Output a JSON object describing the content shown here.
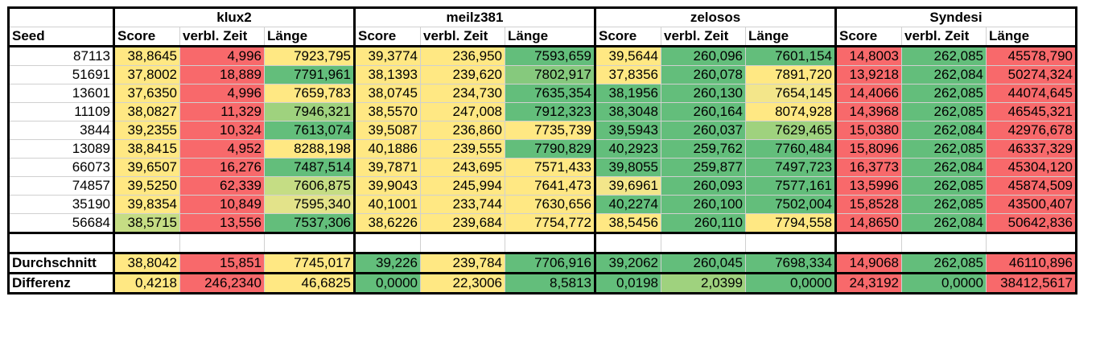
{
  "seed_label": "Seed",
  "sub_headers": [
    "Score",
    "verbl. Zeit",
    "Länge"
  ],
  "groups": [
    {
      "name": "klux2"
    },
    {
      "name": "meilz381"
    },
    {
      "name": "zelosos"
    },
    {
      "name": "Syndesi"
    }
  ],
  "rows": [
    {
      "seed": "87113",
      "v": [
        "38,8645",
        "4,996",
        "7923,795",
        "39,3774",
        "236,950",
        "7593,659",
        "39,5644",
        "260,096",
        "7601,154",
        "14,8003",
        "262,085",
        "45578,790"
      ],
      "c": [
        "#ffe883",
        "#f8696b",
        "#ffe883",
        "#ffe883",
        "#ffe883",
        "#63be7b",
        "#ffe883",
        "#63be7b",
        "#63be7b",
        "#f8696b",
        "#63be7b",
        "#f8696b"
      ]
    },
    {
      "seed": "51691",
      "v": [
        "37,8002",
        "18,889",
        "7791,961",
        "38,1393",
        "239,620",
        "7802,917",
        "37,8356",
        "260,078",
        "7891,720",
        "13,9218",
        "262,084",
        "50274,324"
      ],
      "c": [
        "#ffe883",
        "#f8696b",
        "#63be7b",
        "#ffe883",
        "#ffe883",
        "#86c97d",
        "#ffe883",
        "#63be7b",
        "#ffe883",
        "#f8696b",
        "#63be7b",
        "#f8696b"
      ]
    },
    {
      "seed": "13601",
      "v": [
        "37,6350",
        "4,996",
        "7659,783",
        "38,0745",
        "234,730",
        "7635,354",
        "38,1956",
        "260,130",
        "7654,145",
        "14,4066",
        "262,085",
        "44074,645"
      ],
      "c": [
        "#ffe883",
        "#f8696b",
        "#ffe883",
        "#ffe883",
        "#ffe883",
        "#63be7b",
        "#63be7b",
        "#63be7b",
        "#f3e68a",
        "#f8696b",
        "#63be7b",
        "#f8696b"
      ]
    },
    {
      "seed": "11109",
      "v": [
        "38,0827",
        "11,329",
        "7946,321",
        "38,5570",
        "247,008",
        "7912,323",
        "38,3048",
        "260,164",
        "8074,928",
        "14,3968",
        "262,085",
        "46545,321"
      ],
      "c": [
        "#ffe883",
        "#f8696b",
        "#9fd27e",
        "#ffe883",
        "#ffe883",
        "#63be7b",
        "#63be7b",
        "#63be7b",
        "#ffe883",
        "#f8696b",
        "#63be7b",
        "#f8696b"
      ]
    },
    {
      "seed": "3844",
      "v": [
        "39,2355",
        "10,324",
        "7613,074",
        "39,5087",
        "236,860",
        "7735,739",
        "39,5943",
        "260,037",
        "7629,465",
        "15,0380",
        "262,084",
        "42976,678"
      ],
      "c": [
        "#ffe883",
        "#f8696b",
        "#63be7b",
        "#ffe883",
        "#ffe883",
        "#ffe883",
        "#63be7b",
        "#63be7b",
        "#9fd27e",
        "#f8696b",
        "#63be7b",
        "#f8696b"
      ]
    },
    {
      "seed": "13089",
      "v": [
        "38,8415",
        "4,952",
        "8288,198",
        "40,1886",
        "239,555",
        "7790,829",
        "40,2923",
        "259,762",
        "7760,484",
        "15,8096",
        "262,085",
        "46337,329"
      ],
      "c": [
        "#ffe883",
        "#f8696b",
        "#ffe883",
        "#ffe883",
        "#ffe883",
        "#63be7b",
        "#63be7b",
        "#63be7b",
        "#63be7b",
        "#f8696b",
        "#63be7b",
        "#f8696b"
      ]
    },
    {
      "seed": "66073",
      "v": [
        "39,6507",
        "16,276",
        "7487,514",
        "39,7871",
        "243,695",
        "7571,433",
        "39,8055",
        "259,877",
        "7497,723",
        "16,3773",
        "262,084",
        "45304,120"
      ],
      "c": [
        "#ffe883",
        "#f8696b",
        "#63be7b",
        "#ffe883",
        "#ffe883",
        "#ffe883",
        "#63be7b",
        "#63be7b",
        "#63be7b",
        "#f8696b",
        "#63be7b",
        "#f8696b"
      ]
    },
    {
      "seed": "74857",
      "v": [
        "39,5250",
        "62,339",
        "7606,875",
        "39,9043",
        "245,994",
        "7641,473",
        "39,6961",
        "260,093",
        "7577,161",
        "13,5996",
        "262,085",
        "45874,509"
      ],
      "c": [
        "#ffe883",
        "#f8696b",
        "#c5dd84",
        "#ffe883",
        "#ffe883",
        "#ffe883",
        "#f3e68a",
        "#63be7b",
        "#63be7b",
        "#f8696b",
        "#63be7b",
        "#f8696b"
      ]
    },
    {
      "seed": "35190",
      "v": [
        "39,8354",
        "10,849",
        "7595,340",
        "40,1001",
        "233,744",
        "7630,656",
        "40,2274",
        "260,100",
        "7502,004",
        "15,8528",
        "262,085",
        "43500,407"
      ],
      "c": [
        "#ffe883",
        "#f8696b",
        "#e3e38a",
        "#ffe883",
        "#ffe883",
        "#ffe883",
        "#63be7b",
        "#63be7b",
        "#63be7b",
        "#f8696b",
        "#63be7b",
        "#f8696b"
      ]
    },
    {
      "seed": "56684",
      "v": [
        "38,5715",
        "13,556",
        "7537,306",
        "38,6226",
        "239,684",
        "7754,772",
        "38,5456",
        "260,110",
        "7794,558",
        "14,8650",
        "262,084",
        "50642,836"
      ],
      "c": [
        "#c5dd84",
        "#f8696b",
        "#63be7b",
        "#ffe883",
        "#ffe883",
        "#ffe883",
        "#ffe883",
        "#63be7b",
        "#ffe883",
        "#f8696b",
        "#63be7b",
        "#f8696b"
      ]
    }
  ],
  "summary": [
    {
      "label": "Durchschnitt",
      "v": [
        "38,8042",
        "15,851",
        "7745,017",
        "39,226",
        "239,784",
        "7706,916",
        "39,2062",
        "260,045",
        "7698,334",
        "14,9068",
        "262,085",
        "46110,896"
      ],
      "c": [
        "#ffe883",
        "#f8696b",
        "#ffe883",
        "#63be7b",
        "#ffe883",
        "#63be7b",
        "#63be7b",
        "#63be7b",
        "#63be7b",
        "#f8696b",
        "#63be7b",
        "#f8696b"
      ]
    },
    {
      "label": "Differenz",
      "v": [
        "0,4218",
        "246,2340",
        "46,6825",
        "0,0000",
        "22,3006",
        "8,5813",
        "0,0198",
        "2,0399",
        "0,0000",
        "24,3192",
        "0,0000",
        "38412,5617"
      ],
      "c": [
        "#ffe883",
        "#f8696b",
        "#ffe883",
        "#63be7b",
        "#ffe883",
        "#63be7b",
        "#63be7b",
        "#9fd27e",
        "#63be7b",
        "#f8696b",
        "#63be7b",
        "#f8696b"
      ]
    }
  ]
}
